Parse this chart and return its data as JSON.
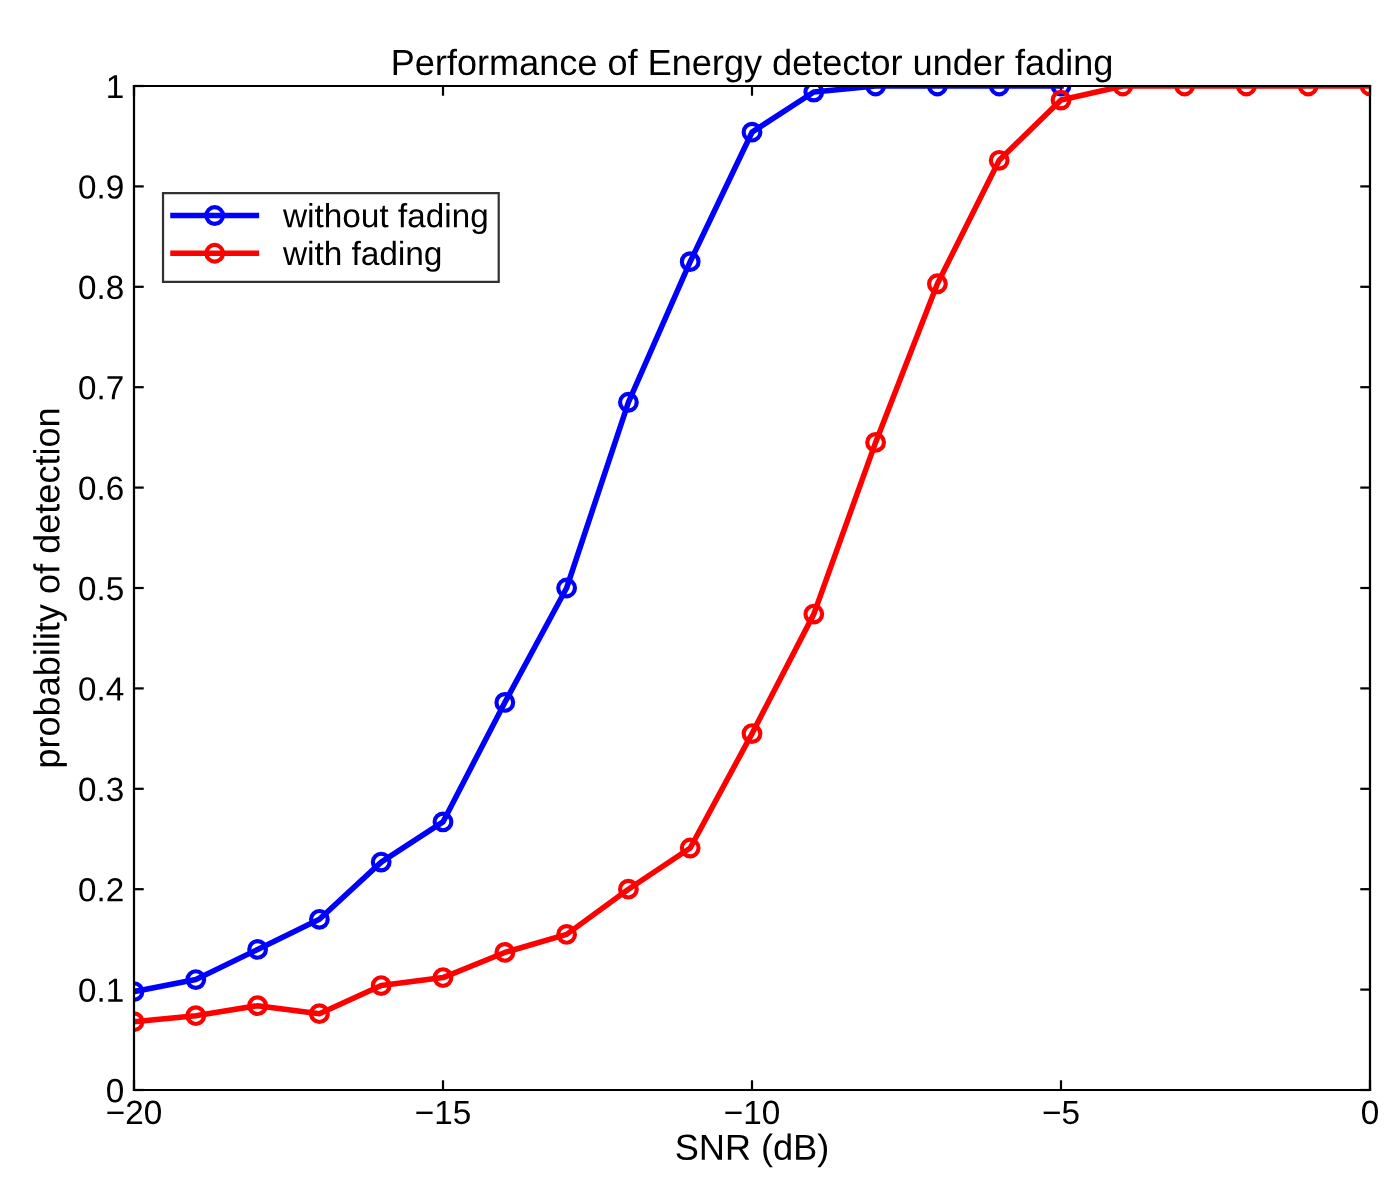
{
  "chart_data": {
    "type": "line",
    "title": "Performance of Energy detector under fading",
    "xlabel": "SNR (dB)",
    "ylabel": "probability of detection",
    "x": [
      -20,
      -19,
      -18,
      -17,
      -16,
      -15,
      -14,
      -13,
      -12,
      -11,
      -10,
      -9,
      -8,
      -7,
      -6,
      -5,
      -4,
      -3,
      -2,
      -1,
      0
    ],
    "series": [
      {
        "name": "without fading",
        "color": "#0000ff",
        "values": [
          0.098,
          0.11,
          0.14,
          0.17,
          0.227,
          0.267,
          0.386,
          0.5,
          0.685,
          0.825,
          0.954,
          0.994,
          1,
          1,
          1,
          1,
          null,
          null,
          null,
          null,
          null
        ]
      },
      {
        "name": "with fading",
        "color": "#ff0000",
        "values": [
          0.068,
          0.074,
          0.084,
          0.076,
          0.104,
          0.112,
          0.137,
          0.155,
          0.2,
          0.241,
          0.355,
          0.474,
          0.645,
          0.803,
          0.926,
          0.986,
          1,
          1,
          1,
          1,
          1
        ]
      }
    ],
    "xlim": [
      -20,
      0
    ],
    "ylim": [
      0,
      1
    ],
    "xticks": [
      {
        "value": -20,
        "label": "−20"
      },
      {
        "value": -15,
        "label": "−15"
      },
      {
        "value": -10,
        "label": "−10"
      },
      {
        "value": -5,
        "label": "−5"
      },
      0
    ],
    "yticks": [
      0,
      0.1,
      0.2,
      0.3,
      0.4,
      0.5,
      0.6,
      0.7,
      0.8,
      0.9,
      1
    ],
    "marker": "circle",
    "line_style": "solid",
    "legend": "top left",
    "grid": false
  }
}
